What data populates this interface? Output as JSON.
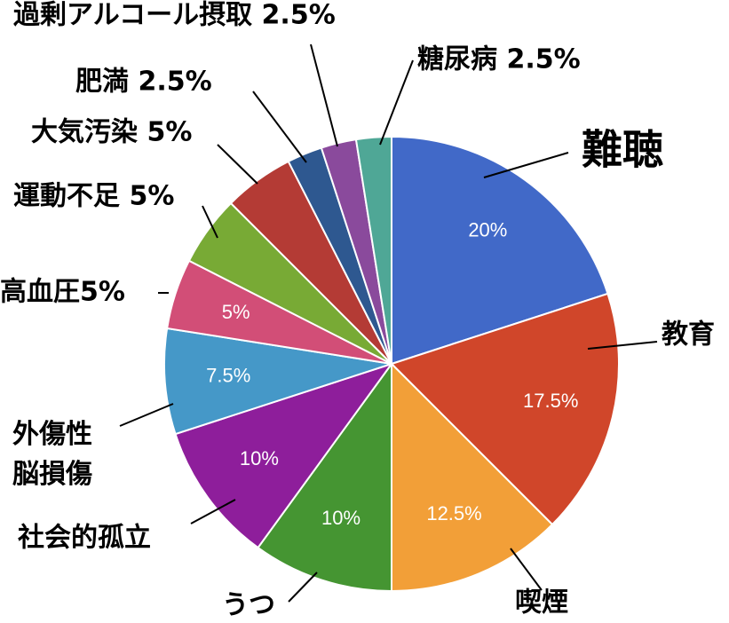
{
  "chart_data": {
    "type": "pie",
    "categories": [
      "難聴",
      "教育",
      "喫煙",
      "うつ",
      "社会的孤立",
      "外傷性\n脳損傷",
      "高血圧5%",
      "運動不足 5%",
      "大気汚染 5%",
      "肥満 2.5%",
      "過剰アルコール摂取 2.5%",
      "糖尿病 2.5%"
    ],
    "values": [
      20,
      17.5,
      12.5,
      10,
      10,
      7.5,
      5,
      5,
      5,
      2.5,
      2.5,
      2.5
    ],
    "value_labels": [
      "20%",
      "17.5%",
      "12.5%",
      "10%",
      "10%",
      "7.5%",
      "5%",
      null,
      null,
      null,
      null,
      null
    ],
    "colors": [
      "#4169c8",
      "#d0462a",
      "#f29f38",
      "#459532",
      "#8e1e9b",
      "#4598c8",
      "#d24e77",
      "#78aa35",
      "#b43b35",
      "#2e5890",
      "#8a4a9c",
      "#4fa796"
    ]
  }
}
